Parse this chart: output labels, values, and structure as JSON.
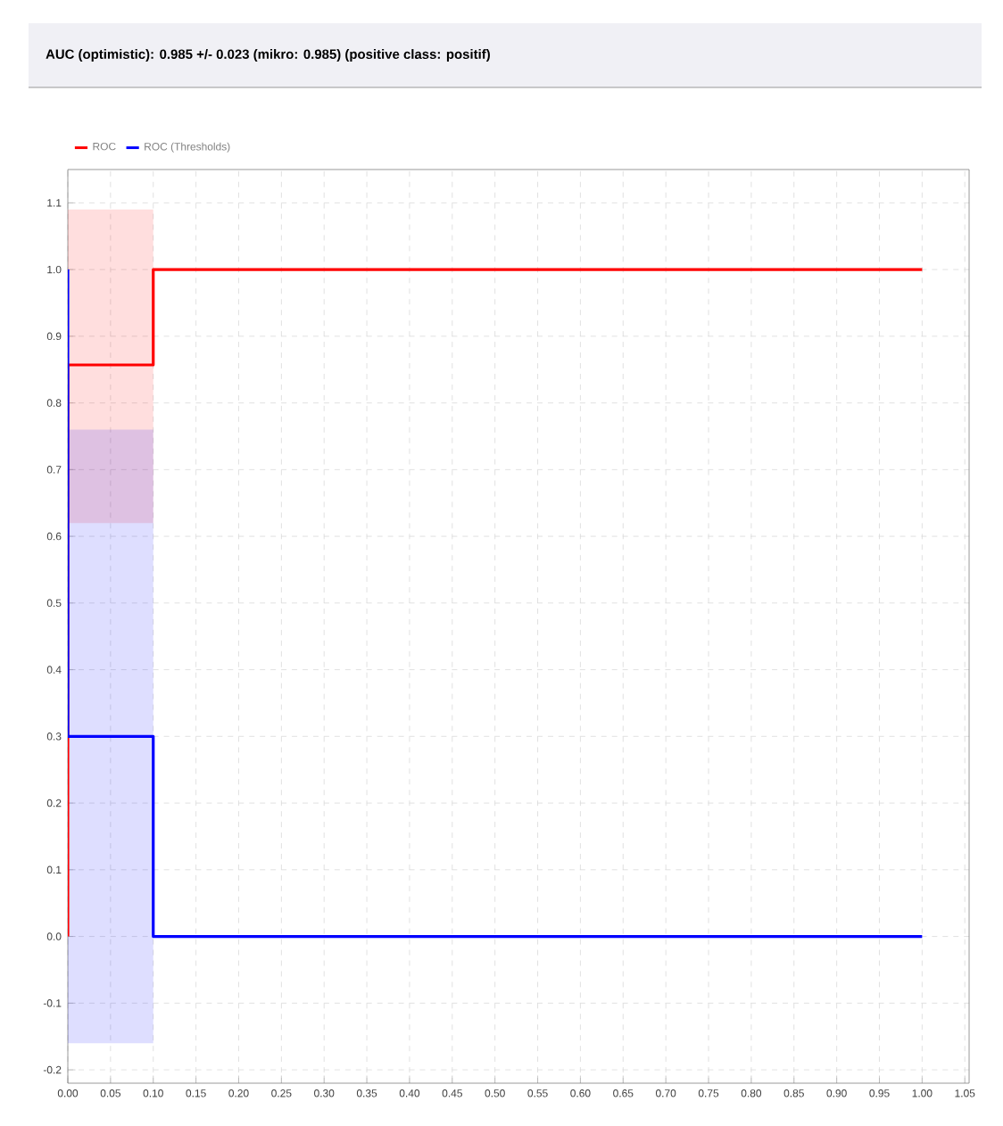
{
  "chart_data": {
    "type": "line",
    "title": "AUC (optimistic): 0.985 +/- 0.023 (mikro: 0.985) (positive class: positif)",
    "series": [
      {
        "name": "ROC",
        "color": "#ff0000",
        "x": [
          0,
          0,
          0.1,
          0.1,
          1
        ],
        "values": [
          0,
          0.857,
          0.857,
          1,
          1
        ],
        "lower": [
          null,
          0.62,
          0.62,
          null,
          null
        ],
        "upper": [
          null,
          1.09,
          1.09,
          null,
          null
        ]
      },
      {
        "name": "ROC (Thresholds)",
        "color": "#0000ff",
        "x": [
          0,
          0,
          0.1,
          0.1,
          1
        ],
        "values": [
          1,
          0.3,
          0.3,
          0,
          0
        ],
        "lower": [
          null,
          -0.16,
          -0.16,
          null,
          null
        ],
        "upper": [
          null,
          0.76,
          0.76,
          null,
          null
        ]
      }
    ],
    "xlim": [
      0,
      1.055
    ],
    "ylim": [
      -0.22,
      1.15
    ],
    "xticks": [
      {
        "value": 0,
        "label": "0.00"
      },
      {
        "value": 0.05,
        "label": "0.05"
      },
      {
        "value": 0.1,
        "label": "0.10"
      },
      {
        "value": 0.15,
        "label": "0.15"
      },
      {
        "value": 0.2,
        "label": "0.20"
      },
      {
        "value": 0.25,
        "label": "0.25"
      },
      {
        "value": 0.3,
        "label": "0.30"
      },
      {
        "value": 0.35,
        "label": "0.35"
      },
      {
        "value": 0.4,
        "label": "0.40"
      },
      {
        "value": 0.45,
        "label": "0.45"
      },
      {
        "value": 0.5,
        "label": "0.50"
      },
      {
        "value": 0.55,
        "label": "0.55"
      },
      {
        "value": 0.6,
        "label": "0.60"
      },
      {
        "value": 0.65,
        "label": "0.65"
      },
      {
        "value": 0.7,
        "label": "0.70"
      },
      {
        "value": 0.75,
        "label": "0.75"
      },
      {
        "value": 0.8,
        "label": "0.80"
      },
      {
        "value": 0.85,
        "label": "0.85"
      },
      {
        "value": 0.9,
        "label": "0.90"
      },
      {
        "value": 0.95,
        "label": "0.95"
      },
      {
        "value": 1,
        "label": "1.00"
      },
      {
        "value": 1.05,
        "label": "1.05"
      }
    ],
    "yticks": [
      -0.2,
      -0.1,
      {
        "value": 0,
        "label": "0.0"
      },
      0.1,
      0.2,
      0.3,
      0.4,
      0.5,
      0.6,
      0.7,
      0.8,
      0.9,
      {
        "value": 1,
        "label": "1.0"
      },
      1.1
    ],
    "grid": true,
    "legend": "top left",
    "line_style": "solid",
    "marker": "none"
  }
}
